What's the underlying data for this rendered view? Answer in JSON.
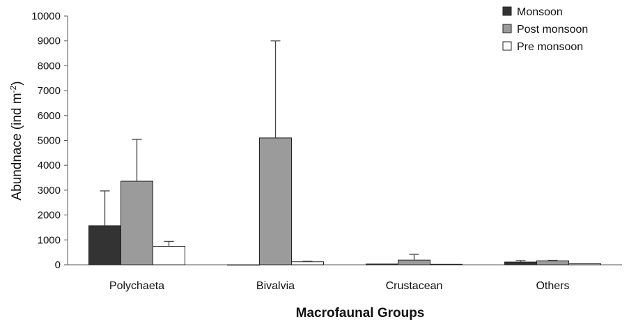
{
  "chart_data": {
    "type": "bar",
    "categories": [
      "Polychaeta",
      "Bivalvia",
      "Crustacean",
      "Others"
    ],
    "series": [
      {
        "name": "Monsoon",
        "values": [
          1570,
          0,
          30,
          110
        ],
        "error": [
          1400,
          0,
          0,
          60
        ],
        "color": "#333333"
      },
      {
        "name": "Post monsoon",
        "values": [
          3360,
          5100,
          190,
          160
        ],
        "error": [
          1680,
          3900,
          230,
          20
        ],
        "color": "#9b9b9b"
      },
      {
        "name": "Pre monsoon",
        "values": [
          740,
          120,
          20,
          40
        ],
        "error": [
          200,
          20,
          0,
          0
        ],
        "color": "#ffffff"
      }
    ],
    "ylabel_main": "Abundnace (ind m",
    "ylabel_sup": "-2",
    "ylabel_close": ")",
    "xlabel": "Macrofaunal Groups",
    "ylim": [
      0,
      10000
    ],
    "yticks": [
      "0",
      "1000",
      "2000",
      "3000",
      "4000",
      "5000",
      "6000",
      "7000",
      "8000",
      "9000",
      "10000"
    ],
    "legend_position": "top-right",
    "grid": false
  }
}
